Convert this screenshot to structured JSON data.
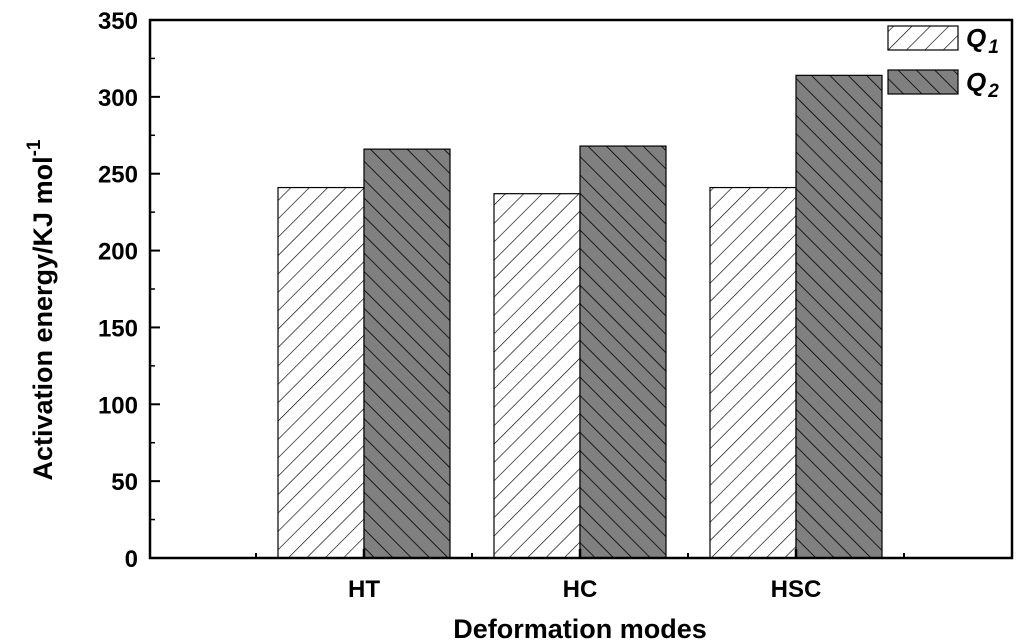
{
  "chart_data": {
    "type": "bar",
    "title": "",
    "xlabel": "Deformation modes",
    "ylabel": "Activation energy/KJ mol",
    "ylabel_superscript": "-1",
    "categories": [
      "HT",
      "HC",
      "HSC"
    ],
    "ylim": [
      0,
      350
    ],
    "y_ticks": [
      "0",
      "50",
      "100",
      "150",
      "200",
      "250",
      "300",
      "350"
    ],
    "series": [
      {
        "name": "Q",
        "subscript": "1",
        "values": [
          241,
          237,
          241
        ],
        "fill": "#ffffff",
        "hatch": "forward-diagonal"
      },
      {
        "name": "Q",
        "subscript": "2",
        "values": [
          266,
          268,
          314
        ],
        "fill": "#808080",
        "hatch": "back-diagonal"
      }
    ],
    "legend_position": "top-right",
    "grid": false
  }
}
